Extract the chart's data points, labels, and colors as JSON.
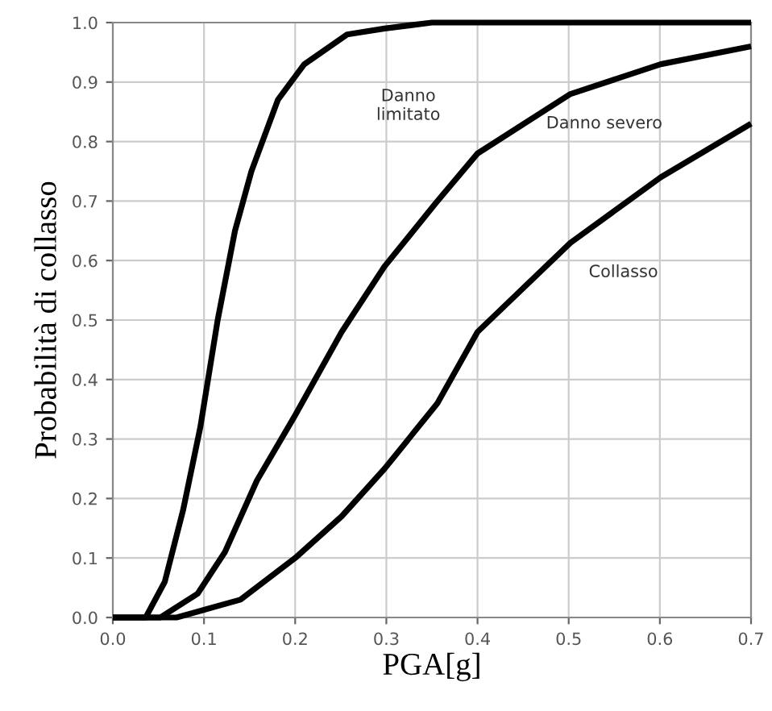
{
  "chart_data": {
    "type": "line",
    "xlabel": "PGA[g]",
    "ylabel": "Probabilità di collasso",
    "xlim": [
      0,
      0.7
    ],
    "ylim": [
      0,
      1
    ],
    "xticks": [
      {
        "value": 0,
        "label": "0.0"
      },
      0.1,
      0.2,
      0.3,
      0.4,
      0.5,
      0.6,
      0.7
    ],
    "yticks": [
      {
        "value": 0,
        "label": "0.0"
      },
      0.1,
      0.2,
      0.3,
      0.4,
      0.5,
      0.6,
      0.7,
      0.8,
      0.9,
      {
        "value": 1,
        "label": "1.0"
      }
    ],
    "grid": true,
    "marker": "none",
    "line_style": "solid",
    "series": [
      {
        "color": "#000000",
        "x": [
          0.0,
          0.036,
          0.057,
          0.077,
          0.096,
          0.115,
          0.134,
          0.152,
          0.181,
          0.21,
          0.257,
          0.298,
          0.35,
          0.7
        ],
        "values": [
          0.0,
          0.0,
          0.06,
          0.18,
          0.32,
          0.5,
          0.65,
          0.75,
          0.87,
          0.93,
          0.98,
          0.99,
          1.0,
          1.0
        ]
      },
      {
        "color": "#000000",
        "x": [
          0.0,
          0.052,
          0.093,
          0.123,
          0.158,
          0.2,
          0.251,
          0.298,
          0.356,
          0.4,
          0.502,
          0.601,
          0.7
        ],
        "values": [
          0.0,
          0.0,
          0.04,
          0.11,
          0.23,
          0.34,
          0.48,
          0.59,
          0.7,
          0.78,
          0.88,
          0.93,
          0.96
        ]
      },
      {
        "color": "#000000",
        "x": [
          0.0,
          0.07,
          0.14,
          0.2,
          0.251,
          0.298,
          0.356,
          0.4,
          0.502,
          0.601,
          0.7
        ],
        "values": [
          0.0,
          0.0,
          0.03,
          0.1,
          0.17,
          0.25,
          0.36,
          0.48,
          0.63,
          0.74,
          0.83
        ]
      }
    ],
    "annotations": [
      "Danno\nlimitato",
      "Danno severo",
      "Collasso"
    ]
  }
}
